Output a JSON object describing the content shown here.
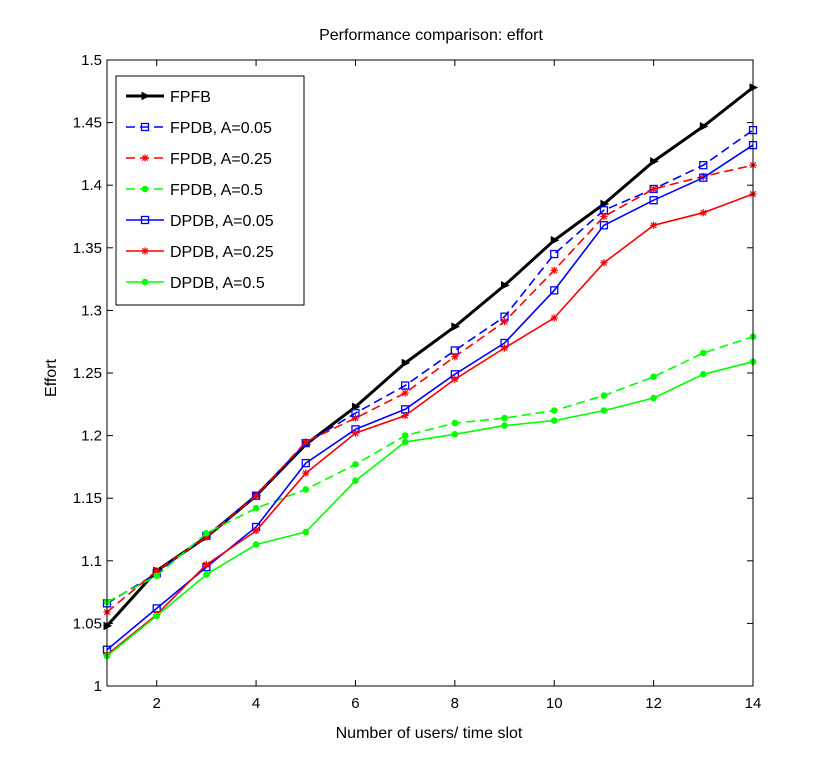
{
  "chart_data": {
    "type": "line",
    "title": "Performance comparison: effort",
    "xlabel": "Number of users/ time slot",
    "ylabel": "Effort",
    "xlim": [
      1,
      14
    ],
    "ylim": [
      1,
      1.5
    ],
    "xticks": [
      2,
      4,
      6,
      8,
      10,
      12,
      14
    ],
    "yticks": [
      1,
      1.05,
      1.1,
      1.15,
      1.2,
      1.25,
      1.3,
      1.35,
      1.4,
      1.45,
      1.5
    ],
    "xtick_labels": [
      "2",
      "4",
      "6",
      "8",
      "10",
      "12",
      "14"
    ],
    "ytick_labels": [
      "1",
      "1.05",
      "1.1",
      "1.15",
      "1.2",
      "1.25",
      "1.3",
      "1.35",
      "1.4",
      "1.45",
      "1.5"
    ],
    "grid": false,
    "legend_position": "top-left",
    "x": [
      1,
      2,
      3,
      4,
      5,
      6,
      7,
      8,
      9,
      10,
      11,
      12,
      13,
      14
    ],
    "series": [
      {
        "name": "FPFB",
        "color": "#000000",
        "dash": "solid",
        "marker": "triangle-right",
        "width": "thick",
        "values": [
          1.048,
          1.092,
          1.119,
          1.152,
          1.193,
          1.223,
          1.258,
          1.287,
          1.32,
          1.356,
          1.385,
          1.419,
          1.447,
          1.478
        ]
      },
      {
        "name": "FPDB, A=0.05",
        "color": "#0000ff",
        "dash": "dashed",
        "marker": "square",
        "width": "normal",
        "values": [
          1.066,
          1.09,
          1.12,
          1.152,
          1.194,
          1.218,
          1.24,
          1.268,
          1.295,
          1.345,
          1.38,
          1.397,
          1.416,
          1.444
        ]
      },
      {
        "name": "FPDB, A=0.25",
        "color": "#ff0000",
        "dash": "dashed",
        "marker": "star",
        "width": "normal",
        "values": [
          1.059,
          1.092,
          1.119,
          1.152,
          1.195,
          1.214,
          1.234,
          1.263,
          1.291,
          1.332,
          1.375,
          1.397,
          1.407,
          1.416
        ]
      },
      {
        "name": "FPDB, A=0.5",
        "color": "#00ff00",
        "dash": "dashed",
        "marker": "dot",
        "width": "normal",
        "values": [
          1.067,
          1.088,
          1.122,
          1.142,
          1.157,
          1.177,
          1.2,
          1.21,
          1.214,
          1.22,
          1.232,
          1.247,
          1.266,
          1.279
        ]
      },
      {
        "name": "DPDB, A=0.05",
        "color": "#0000ff",
        "dash": "solid",
        "marker": "square",
        "width": "normal",
        "values": [
          1.029,
          1.062,
          1.095,
          1.127,
          1.178,
          1.205,
          1.221,
          1.249,
          1.274,
          1.316,
          1.368,
          1.388,
          1.406,
          1.432
        ]
      },
      {
        "name": "DPDB, A=0.25",
        "color": "#ff0000",
        "dash": "solid",
        "marker": "star",
        "width": "normal",
        "values": [
          1.025,
          1.057,
          1.097,
          1.124,
          1.17,
          1.202,
          1.216,
          1.245,
          1.27,
          1.294,
          1.338,
          1.368,
          1.378,
          1.393
        ]
      },
      {
        "name": "DPDB, A=0.5",
        "color": "#00ff00",
        "dash": "solid",
        "marker": "dot",
        "width": "normal",
        "values": [
          1.024,
          1.056,
          1.089,
          1.113,
          1.123,
          1.164,
          1.195,
          1.201,
          1.208,
          1.212,
          1.22,
          1.23,
          1.249,
          1.259
        ]
      }
    ]
  }
}
